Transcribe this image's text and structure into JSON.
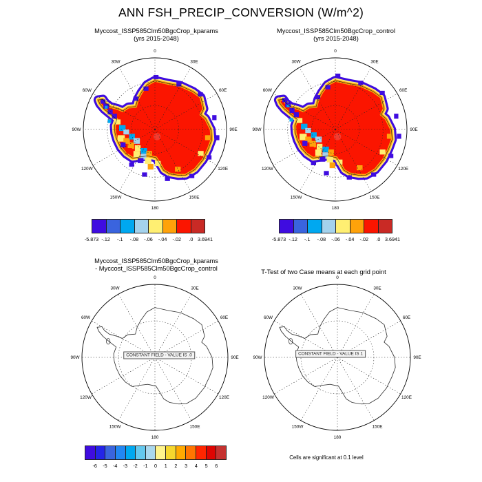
{
  "title": "ANN FSH_PRECIP_CONVERSION (W/m^2)",
  "panels": {
    "top_left": {
      "line1": "Myccost_ISSP585Clm50BgcCrop_kparams",
      "line2": "(yrs 2015-2048)"
    },
    "top_right": {
      "line1": "Myccost_ISSP585Clm50BgcCrop_control",
      "line2": "(yrs 2015-2048)"
    },
    "bottom_left": {
      "line1": "Myccost_ISSP585Clm50BgcCrop_kparams",
      "line2": "- Myccost_ISSP585Clm50BgcCrop_control",
      "constant_field": "CONSTANT FIELD - VALUE IS .0"
    },
    "bottom_right": {
      "line1": "T-Test of two Case means at each grid point",
      "constant_field": "CONSTANT FIELD - VALUE IS 1",
      "footnote": "Cells are significant at 0.1 level"
    }
  },
  "map": {
    "ring_labels": [
      {
        "label": "0",
        "angle": 0
      },
      {
        "label": "30E",
        "angle": 30
      },
      {
        "label": "60E",
        "angle": 60
      },
      {
        "label": "90E",
        "angle": 90
      },
      {
        "label": "120E",
        "angle": 120
      },
      {
        "label": "150E",
        "angle": 150
      },
      {
        "label": "180",
        "angle": 180
      },
      {
        "label": "150W",
        "angle": 210
      },
      {
        "label": "120W",
        "angle": 240
      },
      {
        "label": "90W",
        "angle": 270
      },
      {
        "label": "60W",
        "angle": 300
      },
      {
        "label": "30W",
        "angle": 330
      }
    ]
  },
  "colorbars": {
    "top": {
      "label_mode": "edges",
      "colors": [
        "#3f0ce0",
        "#3a64de",
        "#00a8f0",
        "#a4d2ec",
        "#ffef72",
        "#ffa20a",
        "#fb1500",
        "#c92a25"
      ],
      "labels": [
        "-5.873",
        "-.12",
        "-.1",
        "-.08",
        "-.06",
        "-.04",
        "-.02",
        ".0",
        "3.6941"
      ]
    },
    "bottom": {
      "label_mode": "interior",
      "colors": [
        "#3f0ce0",
        "#2424e8",
        "#3a64de",
        "#2287f2",
        "#00a8f0",
        "#64c8ee",
        "#aad8ee",
        "#fff48c",
        "#f6d72e",
        "#ffaa01",
        "#ff7501",
        "#ff2600",
        "#de0502",
        "#c53230"
      ],
      "labels": [
        "-6",
        "-5",
        "-4",
        "-3",
        "-2",
        "-1",
        "0",
        "1",
        "2",
        "3",
        "4",
        "5",
        "6"
      ]
    }
  },
  "chart_data": {
    "type": "heatmap",
    "subtype": "south-polar-stereographic-panel-plot",
    "title": "ANN FSH_PRECIP_CONVERSION (W/m^2)",
    "longitude_gridlines_deg": 30,
    "longitude_labels": [
      "0",
      "30E",
      "60E",
      "90E",
      "120E",
      "150E",
      "180",
      "150W",
      "120W",
      "90W",
      "60W",
      "30W"
    ],
    "panels": [
      {
        "name": "case1",
        "title": "Myccost_ISSP585Clm50BgcCrop_kparams",
        "years": "yrs 2015-2048",
        "levels": [
          -5.873,
          -0.12,
          -0.1,
          -0.08,
          -0.06,
          -0.04,
          -0.02,
          0,
          3.6941
        ],
        "min": -5.873,
        "max": 3.6941
      },
      {
        "name": "case2",
        "title": "Myccost_ISSP585Clm50BgcCrop_control",
        "years": "yrs 2015-2048",
        "levels": [
          -5.873,
          -0.12,
          -0.1,
          -0.08,
          -0.06,
          -0.04,
          -0.02,
          0,
          3.6941
        ],
        "min": -5.873,
        "max": 3.6941
      },
      {
        "name": "difference",
        "title": "Myccost_ISSP585Clm50BgcCrop_kparams - Myccost_ISSP585Clm50BgcCrop_control",
        "constant_field_value": 0,
        "levels": [
          -6,
          -5,
          -4,
          -3,
          -2,
          -1,
          0,
          1,
          2,
          3,
          4,
          5,
          6
        ]
      },
      {
        "name": "ttest",
        "title": "T-Test of two Case means at each grid point",
        "constant_field_value": 1,
        "significance_note": "Cells are significant at 0.1 level"
      }
    ]
  }
}
